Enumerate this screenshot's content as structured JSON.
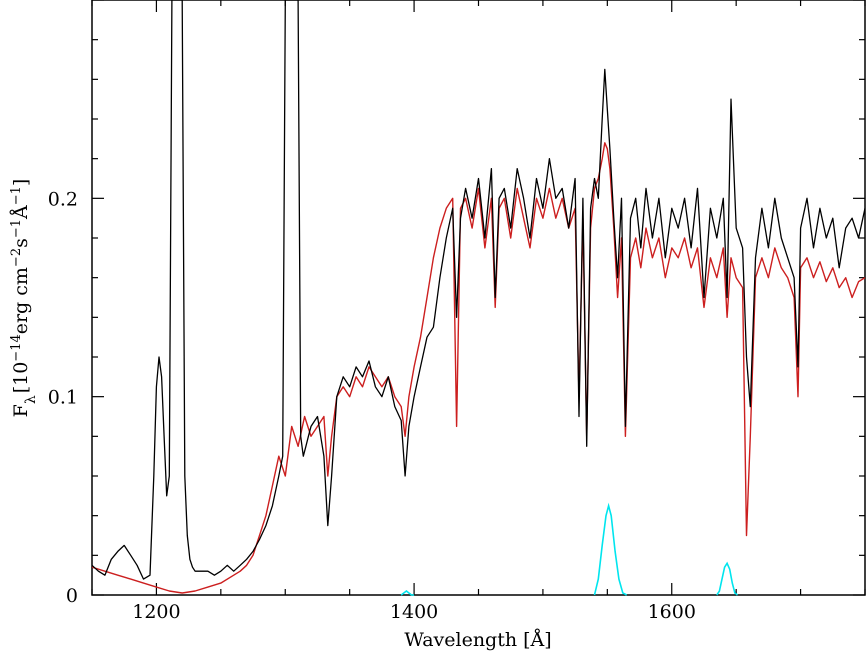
{
  "chart_data": {
    "type": "line",
    "title": "",
    "xlabel": "Wavelength [Å]",
    "ylabel_parts": {
      "sym": "F",
      "sub": "λ",
      "open": "[10",
      "exp1": "−14",
      "mid1": "erg cm",
      "exp2": "−2",
      "mid2": "s",
      "exp3": "−1",
      "mid3": "Å",
      "exp4": "−1",
      "close": "]"
    },
    "xlim": [
      1150,
      1750
    ],
    "ylim": [
      0,
      0.3
    ],
    "x_ticks": [
      1200,
      1400,
      1600
    ],
    "x_tick_labels": [
      "1200",
      "1400",
      "1600"
    ],
    "y_ticks": [
      0,
      0.1,
      0.2
    ],
    "y_tick_labels": [
      "0",
      "0.1",
      "0.2"
    ],
    "grid": false,
    "colors": {
      "observed": "#000000",
      "model": "#cc1f1f",
      "lines": "#00e5ee"
    },
    "series": [
      {
        "key": "observed",
        "x": [
          1150,
          1155,
          1160,
          1165,
          1170,
          1175,
          1180,
          1185,
          1190,
          1195,
          1198,
          1200,
          1202,
          1204,
          1206,
          1208,
          1210,
          1212,
          1214,
          1216,
          1218,
          1220,
          1222,
          1224,
          1226,
          1228,
          1230,
          1235,
          1240,
          1245,
          1250,
          1255,
          1260,
          1265,
          1270,
          1275,
          1280,
          1285,
          1290,
          1295,
          1298,
          1300,
          1302,
          1304,
          1306,
          1308,
          1310,
          1312,
          1314,
          1316,
          1318,
          1320,
          1325,
          1330,
          1333,
          1336,
          1340,
          1345,
          1350,
          1355,
          1360,
          1365,
          1370,
          1375,
          1380,
          1385,
          1390,
          1393,
          1396,
          1400,
          1405,
          1410,
          1415,
          1420,
          1425,
          1430,
          1433,
          1436,
          1440,
          1445,
          1450,
          1455,
          1460,
          1463,
          1466,
          1470,
          1475,
          1480,
          1485,
          1490,
          1495,
          1500,
          1505,
          1510,
          1515,
          1520,
          1525,
          1528,
          1531,
          1534,
          1537,
          1540,
          1543,
          1546,
          1548,
          1550,
          1552,
          1555,
          1558,
          1561,
          1564,
          1568,
          1572,
          1576,
          1580,
          1585,
          1590,
          1595,
          1600,
          1605,
          1610,
          1615,
          1620,
          1625,
          1630,
          1635,
          1640,
          1643,
          1646,
          1650,
          1655,
          1658,
          1661,
          1665,
          1670,
          1675,
          1680,
          1685,
          1690,
          1695,
          1698,
          1700,
          1705,
          1710,
          1715,
          1720,
          1725,
          1730,
          1735,
          1740,
          1745,
          1750
        ],
        "y": [
          0.015,
          0.012,
          0.01,
          0.018,
          0.022,
          0.025,
          0.02,
          0.015,
          0.008,
          0.01,
          0.06,
          0.105,
          0.12,
          0.11,
          0.08,
          0.05,
          0.06,
          0.3,
          0.3,
          0.3,
          0.3,
          0.3,
          0.06,
          0.03,
          0.018,
          0.014,
          0.012,
          0.012,
          0.012,
          0.01,
          0.012,
          0.015,
          0.012,
          0.015,
          0.018,
          0.022,
          0.028,
          0.035,
          0.045,
          0.06,
          0.07,
          0.3,
          0.3,
          0.3,
          0.3,
          0.3,
          0.3,
          0.08,
          0.07,
          0.075,
          0.08,
          0.085,
          0.09,
          0.07,
          0.035,
          0.06,
          0.1,
          0.11,
          0.105,
          0.115,
          0.11,
          0.118,
          0.105,
          0.1,
          0.11,
          0.095,
          0.088,
          0.06,
          0.085,
          0.1,
          0.115,
          0.13,
          0.135,
          0.16,
          0.18,
          0.195,
          0.14,
          0.19,
          0.205,
          0.19,
          0.21,
          0.18,
          0.215,
          0.15,
          0.2,
          0.205,
          0.185,
          0.215,
          0.2,
          0.18,
          0.21,
          0.195,
          0.22,
          0.2,
          0.205,
          0.185,
          0.21,
          0.09,
          0.2,
          0.075,
          0.195,
          0.21,
          0.2,
          0.24,
          0.265,
          0.245,
          0.225,
          0.19,
          0.16,
          0.2,
          0.085,
          0.19,
          0.2,
          0.175,
          0.205,
          0.18,
          0.2,
          0.17,
          0.195,
          0.185,
          0.2,
          0.175,
          0.205,
          0.15,
          0.195,
          0.18,
          0.2,
          0.15,
          0.25,
          0.185,
          0.175,
          0.12,
          0.095,
          0.17,
          0.195,
          0.175,
          0.2,
          0.18,
          0.17,
          0.16,
          0.115,
          0.185,
          0.2,
          0.175,
          0.195,
          0.18,
          0.19,
          0.165,
          0.185,
          0.19,
          0.18,
          0.195
        ]
      },
      {
        "key": "model",
        "x": [
          1150,
          1160,
          1170,
          1180,
          1190,
          1200,
          1210,
          1220,
          1230,
          1240,
          1250,
          1260,
          1265,
          1270,
          1275,
          1280,
          1285,
          1290,
          1295,
          1300,
          1305,
          1310,
          1315,
          1320,
          1325,
          1330,
          1333,
          1336,
          1340,
          1345,
          1350,
          1355,
          1360,
          1365,
          1370,
          1375,
          1380,
          1385,
          1390,
          1393,
          1396,
          1400,
          1405,
          1410,
          1415,
          1420,
          1425,
          1430,
          1433,
          1436,
          1440,
          1445,
          1450,
          1455,
          1460,
          1463,
          1466,
          1470,
          1475,
          1480,
          1485,
          1490,
          1495,
          1500,
          1505,
          1510,
          1515,
          1520,
          1525,
          1528,
          1531,
          1534,
          1537,
          1540,
          1543,
          1546,
          1548,
          1550,
          1552,
          1555,
          1558,
          1561,
          1564,
          1568,
          1572,
          1576,
          1580,
          1585,
          1590,
          1595,
          1600,
          1605,
          1610,
          1615,
          1620,
          1625,
          1630,
          1635,
          1640,
          1643,
          1646,
          1650,
          1655,
          1658,
          1661,
          1665,
          1670,
          1675,
          1680,
          1685,
          1690,
          1695,
          1698,
          1700,
          1705,
          1710,
          1715,
          1720,
          1725,
          1730,
          1735,
          1740,
          1745,
          1750
        ],
        "y": [
          0.014,
          0.012,
          0.01,
          0.008,
          0.006,
          0.004,
          0.002,
          0.001,
          0.002,
          0.004,
          0.006,
          0.01,
          0.012,
          0.015,
          0.02,
          0.03,
          0.04,
          0.055,
          0.07,
          0.06,
          0.085,
          0.075,
          0.09,
          0.08,
          0.085,
          0.09,
          0.06,
          0.08,
          0.1,
          0.105,
          0.1,
          0.11,
          0.105,
          0.115,
          0.11,
          0.105,
          0.11,
          0.1,
          0.095,
          0.08,
          0.1,
          0.115,
          0.13,
          0.15,
          0.17,
          0.185,
          0.195,
          0.2,
          0.085,
          0.195,
          0.2,
          0.185,
          0.205,
          0.175,
          0.2,
          0.145,
          0.195,
          0.2,
          0.18,
          0.205,
          0.19,
          0.175,
          0.2,
          0.19,
          0.205,
          0.19,
          0.2,
          0.185,
          0.195,
          0.1,
          0.19,
          0.08,
          0.185,
          0.205,
          0.21,
          0.22,
          0.228,
          0.225,
          0.215,
          0.185,
          0.15,
          0.18,
          0.08,
          0.17,
          0.18,
          0.165,
          0.185,
          0.17,
          0.18,
          0.16,
          0.175,
          0.17,
          0.18,
          0.165,
          0.175,
          0.145,
          0.17,
          0.16,
          0.175,
          0.14,
          0.17,
          0.16,
          0.155,
          0.03,
          0.08,
          0.16,
          0.17,
          0.16,
          0.175,
          0.165,
          0.16,
          0.15,
          0.1,
          0.165,
          0.17,
          0.16,
          0.168,
          0.158,
          0.165,
          0.155,
          0.16,
          0.15,
          0.158,
          0.16
        ]
      },
      {
        "key": "lines",
        "x": [
          1390,
          1392,
          1394,
          1396,
          1398,
          1400,
          1540,
          1543,
          1546,
          1549,
          1551,
          1553,
          1556,
          1559,
          1562,
          1565,
          1635,
          1637,
          1639,
          1641,
          1643,
          1645,
          1647,
          1649,
          1651
        ],
        "y": [
          0,
          0.001,
          0.002,
          0.001,
          0,
          0,
          0,
          0.008,
          0.025,
          0.04,
          0.045,
          0.04,
          0.022,
          0.008,
          0.001,
          0,
          0,
          0.002,
          0.008,
          0.014,
          0.016,
          0.013,
          0.006,
          0.001,
          0
        ]
      }
    ]
  }
}
